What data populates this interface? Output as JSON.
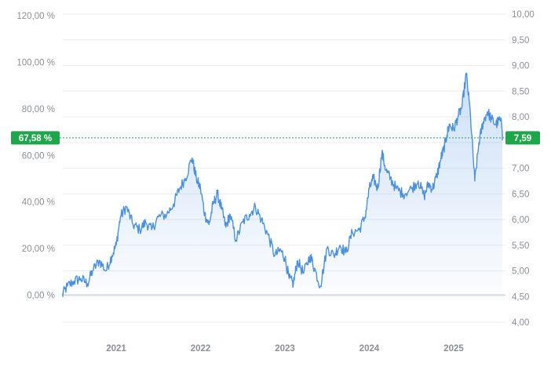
{
  "chart_data": {
    "type": "area",
    "x_ticks": [
      "2021",
      "2022",
      "2023",
      "2024",
      "2025"
    ],
    "y_left_ticks": [
      "120,00 %",
      "100,00 %",
      "80,00 %",
      "60,00 %",
      "40,00 %",
      "20,00 %",
      "0,00 %"
    ],
    "y_right_ticks": [
      "10,00",
      "9,50",
      "9,00",
      "8,50",
      "8,00",
      "7,00",
      "6,50",
      "6,00",
      "5,50",
      "5,00",
      "4,50",
      "4,00"
    ],
    "y_right_range": [
      4.0,
      10.0
    ],
    "current_percent_label": "67,58 %",
    "current_price_label": "7,59",
    "current_price": 7.59,
    "baseline_price": 4.53,
    "series": [
      {
        "x": [
          2020.35,
          2020.42,
          2020.5,
          2020.58,
          2020.66,
          2020.72,
          2020.8,
          2020.88,
          2020.95,
          2021.0,
          2021.05,
          2021.12,
          2021.2,
          2021.28,
          2021.35,
          2021.42,
          2021.5,
          2021.6,
          2021.68,
          2021.75,
          2021.82,
          2021.9,
          2021.95,
          2022.0,
          2022.05,
          2022.1,
          2022.15,
          2022.2,
          2022.25,
          2022.3,
          2022.35,
          2022.42,
          2022.5,
          2022.58,
          2022.65,
          2022.72,
          2022.8,
          2022.88,
          2022.95,
          2023.0,
          2023.05,
          2023.1,
          2023.15,
          2023.22,
          2023.3,
          2023.35,
          2023.42,
          2023.5,
          2023.58,
          2023.65,
          2023.72,
          2023.8,
          2023.88,
          2023.95,
          2024.0,
          2024.05,
          2024.1,
          2024.15,
          2024.2,
          2024.25,
          2024.32,
          2024.4,
          2024.5,
          2024.58,
          2024.65,
          2024.7,
          2024.75,
          2024.8,
          2024.85,
          2024.88,
          2024.92,
          2024.95,
          2025.0,
          2025.05,
          2025.1,
          2025.15,
          2025.2,
          2025.25,
          2025.3,
          2025.35,
          2025.4,
          2025.45,
          2025.5,
          2025.55,
          2025.6
        ],
        "y": [
          4.5,
          4.7,
          4.8,
          4.85,
          4.75,
          5.0,
          5.2,
          5.0,
          5.3,
          5.5,
          6.05,
          6.25,
          5.9,
          5.8,
          5.95,
          5.8,
          6.05,
          6.1,
          6.3,
          6.6,
          6.8,
          7.2,
          6.8,
          6.6,
          6.1,
          5.9,
          6.3,
          6.5,
          6.2,
          5.85,
          6.1,
          5.6,
          5.95,
          6.1,
          6.25,
          6.0,
          5.7,
          5.3,
          5.4,
          5.25,
          4.85,
          4.75,
          5.2,
          4.95,
          5.3,
          5.05,
          4.7,
          5.45,
          5.3,
          5.5,
          5.35,
          5.75,
          5.8,
          6.05,
          6.6,
          6.8,
          6.6,
          7.3,
          6.95,
          6.8,
          6.6,
          6.5,
          6.6,
          6.75,
          6.45,
          6.7,
          6.6,
          6.85,
          7.2,
          7.35,
          7.65,
          7.85,
          7.75,
          8.0,
          8.2,
          8.85,
          8.0,
          6.75,
          7.5,
          7.9,
          8.1,
          7.95,
          7.85,
          7.95,
          7.59
        ]
      }
    ]
  }
}
